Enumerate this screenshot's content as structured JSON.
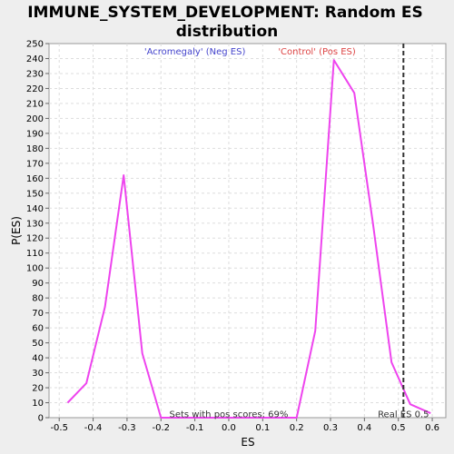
{
  "chart_data": {
    "type": "line",
    "title": "IMMUNE_SYSTEM_DEVELOPMENT: Random ES distribution",
    "title_lines": [
      "IMMUNE_SYSTEM_DEVELOPMENT: Random ES",
      "distribution"
    ],
    "xlabel": "ES",
    "ylabel": "P(ES)",
    "xlim": [
      -0.53,
      0.64
    ],
    "ylim": [
      0,
      250
    ],
    "x_ticks": [
      -0.5,
      -0.4,
      -0.3,
      -0.2,
      -0.1,
      0.0,
      0.1,
      0.2,
      0.3,
      0.4,
      0.5,
      0.6
    ],
    "x_tick_labels": [
      "-0.5",
      "-0.4",
      "-0.3",
      "-0.2",
      "-0.1",
      "0.0",
      "0.1",
      "0.2",
      "0.3",
      "0.4",
      "0.5",
      "0.6"
    ],
    "y_ticks": [
      0,
      10,
      20,
      30,
      40,
      50,
      60,
      70,
      80,
      90,
      100,
      110,
      120,
      130,
      140,
      150,
      160,
      170,
      180,
      190,
      200,
      210,
      220,
      230,
      240,
      250
    ],
    "grid": true,
    "series": [
      {
        "name": "P(ES)",
        "color": "#ee44ee",
        "x": [
          -0.475,
          -0.42,
          -0.365,
          -0.31,
          -0.255,
          -0.2,
          -0.145,
          -0.09,
          -0.035,
          0.02,
          0.075,
          0.13,
          0.185,
          0.2,
          0.255,
          0.31,
          0.37,
          0.425,
          0.48,
          0.535,
          0.595
        ],
        "y": [
          10,
          23,
          74,
          162,
          43,
          0,
          0,
          0,
          0,
          0,
          0,
          0,
          0,
          0,
          58,
          239,
          217,
          130,
          37,
          9,
          3
        ]
      }
    ],
    "annotations": [
      {
        "text": "'Acromegaly' (Neg ES)",
        "color": "#4444cc",
        "x": -0.1,
        "y": 245
      },
      {
        "text": "'Control' (Pos ES)",
        "color": "#dd4444",
        "x": 0.26,
        "y": 245
      },
      {
        "text": "Sets with pos scores: 69%",
        "color": "#333333",
        "x": 0.0,
        "y": 0
      },
      {
        "text": "Real ES 0.5",
        "color": "#333333",
        "x": 0.515,
        "y": 0
      }
    ],
    "reference_line": {
      "x": 0.515,
      "style": "dashed",
      "color": "#333333"
    }
  }
}
